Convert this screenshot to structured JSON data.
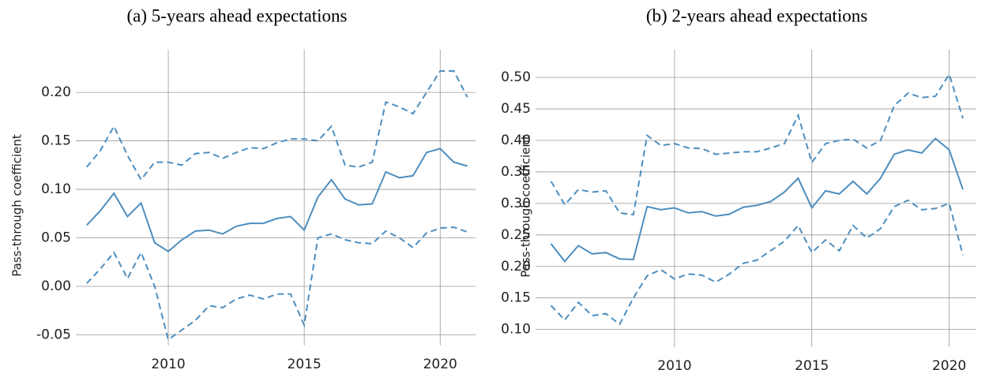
{
  "chart_data": [
    {
      "type": "line",
      "title": "(a) 5-years ahead expectations",
      "y_label": "Pass-through coefficient",
      "x": [
        2007.0,
        2007.5,
        2008.0,
        2008.5,
        2009.0,
        2009.5,
        2010.0,
        2010.5,
        2011.0,
        2011.5,
        2012.0,
        2012.5,
        2013.0,
        2013.5,
        2014.0,
        2014.5,
        2015.0,
        2015.5,
        2016.0,
        2016.5,
        2017.0,
        2017.5,
        2018.0,
        2018.5,
        2019.0,
        2019.5,
        2020.0,
        2020.5,
        2021.0
      ],
      "xlim": [
        2006.6,
        2021.3
      ],
      "xticks": [
        2010,
        2015,
        2020
      ],
      "ylim": [
        -0.061,
        0.244
      ],
      "yticks": [
        {
          "value": -0.05,
          "label": "-0.05"
        },
        {
          "value": 0,
          "label": "0.00"
        },
        {
          "value": 0.05,
          "label": "0.05"
        },
        {
          "value": 0.1,
          "label": "0.10"
        },
        {
          "value": 0.15,
          "label": "0.15"
        },
        {
          "value": 0.2,
          "label": "0.20"
        }
      ],
      "grid": true,
      "series": [
        {
          "color": "#4d8ebf",
          "dashed": false,
          "values": [
            0.063,
            0.078,
            0.096,
            0.072,
            0.086,
            0.045,
            0.036,
            0.048,
            0.057,
            0.058,
            0.054,
            0.062,
            0.065,
            0.065,
            0.07,
            0.072,
            0.058,
            0.092,
            0.11,
            0.09,
            0.084,
            0.085,
            0.118,
            0.112,
            0.114,
            0.138,
            0.142,
            0.128,
            0.124
          ]
        },
        {
          "color": "#4d8ebf",
          "dashed": true,
          "values": [
            0.123,
            0.14,
            0.165,
            0.135,
            0.11,
            0.128,
            0.128,
            0.125,
            0.137,
            0.138,
            0.132,
            0.138,
            0.143,
            0.142,
            0.148,
            0.152,
            0.152,
            0.15,
            0.165,
            0.125,
            0.123,
            0.128,
            0.19,
            0.185,
            0.178,
            0.2,
            0.222,
            0.222,
            0.195
          ]
        },
        {
          "color": "#4d8ebf",
          "dashed": true,
          "values": [
            0.003,
            0.018,
            0.035,
            0.008,
            0.035,
            0.0,
            -0.055,
            -0.045,
            -0.035,
            -0.02,
            -0.022,
            -0.013,
            -0.009,
            -0.013,
            -0.008,
            -0.008,
            -0.04,
            0.05,
            0.054,
            0.048,
            0.045,
            0.044,
            0.057,
            0.05,
            0.04,
            0.055,
            0.06,
            0.061,
            0.056
          ]
        }
      ]
    },
    {
      "type": "line",
      "title": "(b) 2-years ahead expectations",
      "y_label": "Pass-through coefficient",
      "x": [
        2005.5,
        2006.0,
        2006.5,
        2007.0,
        2007.5,
        2008.0,
        2008.5,
        2009.0,
        2009.5,
        2010.0,
        2010.5,
        2011.0,
        2011.5,
        2012.0,
        2012.5,
        2013.0,
        2013.5,
        2014.0,
        2014.5,
        2015.0,
        2015.5,
        2016.0,
        2016.5,
        2017.0,
        2017.5,
        2018.0,
        2018.5,
        2019.0,
        2019.5,
        2020.0,
        2020.5
      ],
      "xlim": [
        2004.94,
        2020.99
      ],
      "xticks": [
        2010,
        2015,
        2020
      ],
      "ylim": [
        0.072,
        0.544
      ],
      "yticks": [
        {
          "value": 0.1,
          "label": "0.10"
        },
        {
          "value": 0.15,
          "label": "0.15"
        },
        {
          "value": 0.2,
          "label": "0.20"
        },
        {
          "value": 0.25,
          "label": "0.25"
        },
        {
          "value": 0.3,
          "label": "0.30"
        },
        {
          "value": 0.35,
          "label": "0.35"
        },
        {
          "value": 0.4,
          "label": "0.40"
        },
        {
          "value": 0.45,
          "label": "0.45"
        },
        {
          "value": 0.5,
          "label": "0.50"
        }
      ],
      "grid": true,
      "series": [
        {
          "color": "#4d8ebf",
          "dashed": false,
          "values": [
            0.236,
            0.208,
            0.233,
            0.22,
            0.222,
            0.212,
            0.211,
            0.295,
            0.29,
            0.293,
            0.285,
            0.287,
            0.28,
            0.283,
            0.294,
            0.297,
            0.303,
            0.318,
            0.34,
            0.293,
            0.32,
            0.315,
            0.335,
            0.315,
            0.34,
            0.378,
            0.385,
            0.38,
            0.403,
            0.385,
            0.322
          ]
        },
        {
          "color": "#4d8ebf",
          "dashed": true,
          "values": [
            0.335,
            0.298,
            0.322,
            0.318,
            0.32,
            0.285,
            0.282,
            0.408,
            0.392,
            0.395,
            0.388,
            0.387,
            0.378,
            0.38,
            0.382,
            0.382,
            0.388,
            0.395,
            0.44,
            0.365,
            0.395,
            0.4,
            0.402,
            0.388,
            0.4,
            0.455,
            0.475,
            0.468,
            0.47,
            0.505,
            0.435
          ]
        },
        {
          "color": "#4d8ebf",
          "dashed": true,
          "values": [
            0.138,
            0.115,
            0.143,
            0.122,
            0.125,
            0.108,
            0.15,
            0.185,
            0.195,
            0.18,
            0.188,
            0.186,
            0.175,
            0.188,
            0.205,
            0.21,
            0.225,
            0.24,
            0.265,
            0.222,
            0.242,
            0.225,
            0.265,
            0.245,
            0.26,
            0.295,
            0.305,
            0.29,
            0.292,
            0.3,
            0.218
          ]
        }
      ]
    }
  ]
}
